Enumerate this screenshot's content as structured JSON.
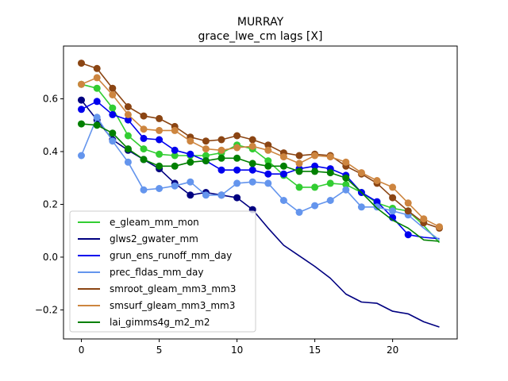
{
  "chart_data": {
    "type": "line",
    "title": "MURRAY",
    "subtitle": "grace_lwe_cm lags [X]",
    "xlabel": "",
    "ylabel": "",
    "xlim": [
      -1.15,
      24.15
    ],
    "ylim": [
      -0.31,
      0.8
    ],
    "xticks": [
      0,
      5,
      10,
      15,
      20
    ],
    "yticks": [
      -0.2,
      0.0,
      0.2,
      0.4,
      0.6
    ],
    "ytick_labels": [
      "−0.2",
      "0.0",
      "0.2",
      "0.4",
      "0.6"
    ],
    "grid": false,
    "legend_position": "lower-left",
    "x": [
      0,
      1,
      2,
      3,
      4,
      5,
      6,
      7,
      8,
      9,
      10,
      11,
      12,
      13,
      14,
      15,
      16,
      17,
      18,
      19,
      20,
      21,
      22,
      23
    ],
    "series": [
      {
        "name": "e_gleam_mm_mon",
        "color": "#32cd32",
        "markers_until": 21,
        "values": [
          0.655,
          0.64,
          0.565,
          0.46,
          0.41,
          0.39,
          0.385,
          0.385,
          0.385,
          0.395,
          0.425,
          0.41,
          0.365,
          0.31,
          0.265,
          0.265,
          0.28,
          0.275,
          0.245,
          0.205,
          0.185,
          0.175,
          0.12,
          0.055
        ]
      },
      {
        "name": "glws2_gwater_mm",
        "color": "#000080",
        "markers_until": 11,
        "values": [
          0.595,
          0.52,
          0.445,
          0.405,
          0.37,
          0.335,
          0.28,
          0.235,
          0.245,
          0.235,
          0.225,
          0.18,
          0.11,
          0.045,
          0.005,
          -0.035,
          -0.08,
          -0.14,
          -0.17,
          -0.175,
          -0.205,
          -0.215,
          -0.245,
          -0.265
        ]
      },
      {
        "name": "grun_ens_runoff_mm_day",
        "color": "#0000ee",
        "markers_until": 21,
        "values": [
          0.56,
          0.59,
          0.54,
          0.52,
          0.45,
          0.445,
          0.405,
          0.39,
          0.365,
          0.33,
          0.33,
          0.33,
          0.315,
          0.315,
          0.335,
          0.345,
          0.335,
          0.31,
          0.245,
          0.21,
          0.15,
          0.085,
          0.075,
          0.07
        ]
      },
      {
        "name": "prec_fldas_mm_day",
        "color": "#6495ed",
        "markers_until": 21,
        "values": [
          0.385,
          0.53,
          0.44,
          0.36,
          0.255,
          0.26,
          0.27,
          0.285,
          0.235,
          0.235,
          0.28,
          0.285,
          0.28,
          0.215,
          0.17,
          0.195,
          0.215,
          0.255,
          0.19,
          0.19,
          0.175,
          0.16,
          0.11,
          0.065
        ]
      },
      {
        "name": "smroot_gleam_mm3_mm3",
        "color": "#8b4513",
        "markers_until": 23,
        "values": [
          0.735,
          0.715,
          0.64,
          0.57,
          0.535,
          0.525,
          0.495,
          0.455,
          0.44,
          0.445,
          0.46,
          0.445,
          0.425,
          0.395,
          0.385,
          0.39,
          0.385,
          0.345,
          0.315,
          0.28,
          0.225,
          0.175,
          0.13,
          0.11
        ]
      },
      {
        "name": "smsurf_gleam_mm3_mm3",
        "color": "#cd853f",
        "markers_until": 23,
        "values": [
          0.655,
          0.68,
          0.615,
          0.54,
          0.485,
          0.48,
          0.48,
          0.44,
          0.41,
          0.405,
          0.415,
          0.42,
          0.405,
          0.38,
          0.355,
          0.385,
          0.38,
          0.36,
          0.32,
          0.29,
          0.265,
          0.205,
          0.145,
          0.115
        ]
      },
      {
        "name": "lai_gimms4g_m2_m2",
        "color": "#008000",
        "markers_until": 17,
        "values": [
          0.505,
          0.5,
          0.47,
          0.41,
          0.37,
          0.345,
          0.345,
          0.36,
          0.365,
          0.375,
          0.375,
          0.355,
          0.345,
          0.345,
          0.325,
          0.325,
          0.32,
          0.3,
          0.245,
          0.185,
          0.14,
          0.11,
          0.065,
          0.06
        ]
      }
    ]
  }
}
